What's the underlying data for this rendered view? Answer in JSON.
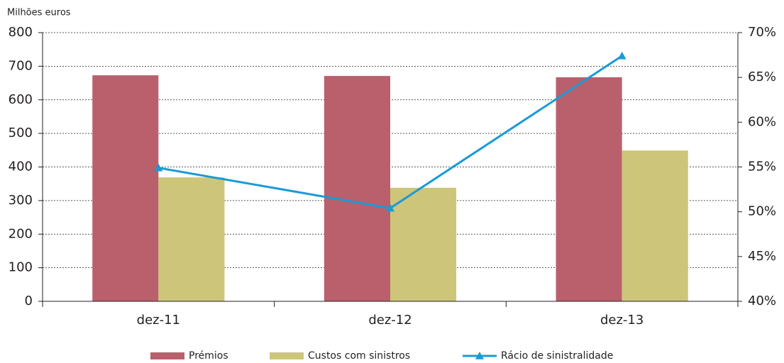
{
  "chart_data": {
    "type": "bar-line",
    "y_axis_label": "Milhões euros",
    "categories": [
      "dez-11",
      "dez-12",
      "dez-13"
    ],
    "series": [
      {
        "name": "Prémios",
        "color": "#b9606c",
        "type": "bar",
        "values": [
          673,
          671,
          667
        ]
      },
      {
        "name": "Custos com sinistros",
        "color": "#cdc67a",
        "type": "bar",
        "values": [
          369,
          338,
          449
        ]
      },
      {
        "name": "Rácio de sinistralidade",
        "color": "#1a9ad6",
        "type": "line",
        "axis": "y2",
        "values": [
          54.9,
          50.4,
          67.4
        ]
      }
    ],
    "ylim": [
      0,
      800
    ],
    "yticks": [
      0,
      100,
      200,
      300,
      400,
      500,
      600,
      700,
      800
    ],
    "y2lim": [
      40,
      70
    ],
    "y2ticks": [
      {
        "value": 40,
        "label": "40%"
      },
      {
        "value": 45,
        "label": "45%"
      },
      {
        "value": 50,
        "label": "50%"
      },
      {
        "value": 55,
        "label": "55%"
      },
      {
        "value": 60,
        "label": "60%"
      },
      {
        "value": 65,
        "label": "65%"
      },
      {
        "value": 70,
        "label": "70%"
      }
    ],
    "grid": true,
    "legend": "bottom"
  }
}
